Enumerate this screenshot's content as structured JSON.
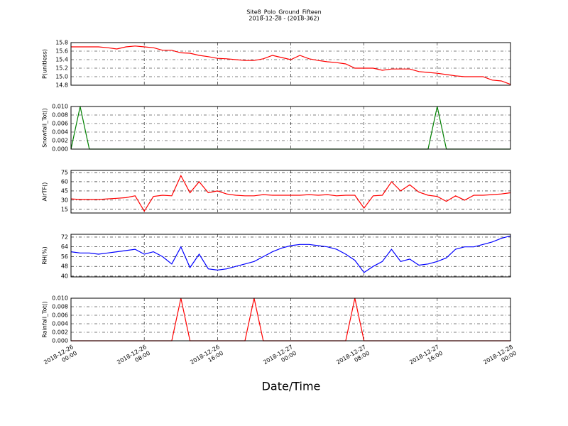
{
  "chart_data": {
    "type": "line",
    "title": "Site8_Polo_Ground_Fifteen",
    "subtitle": "2018-12-28 - (2018-362)",
    "xlabel": "Date/Time",
    "grid": true,
    "xlim": [
      0,
      48
    ],
    "xticks": [
      {
        "value": 0,
        "label": "2018-12-26\n00:00"
      },
      {
        "value": 8,
        "label": "2018-12-26\n08:00"
      },
      {
        "value": 16,
        "label": "2018-12-26\n16:00"
      },
      {
        "value": 24,
        "label": "2018-12-27\n00:00"
      },
      {
        "value": 32,
        "label": "2018-12-27\n08:00"
      },
      {
        "value": 40,
        "label": "2018-12-27\n16:00"
      },
      {
        "value": 48,
        "label": "2018-12-28\n00:00"
      }
    ],
    "x": [
      0,
      1,
      2,
      3,
      4,
      5,
      6,
      7,
      8,
      9,
      10,
      11,
      12,
      13,
      14,
      15,
      16,
      17,
      18,
      19,
      20,
      21,
      22,
      23,
      24,
      25,
      26,
      27,
      28,
      29,
      30,
      31,
      32,
      33,
      34,
      35,
      36,
      37,
      38,
      39,
      40,
      41,
      42,
      43,
      44,
      45,
      46,
      47,
      48
    ],
    "panels": [
      {
        "ylabel": "P(unitless)",
        "ylim": [
          14.8,
          15.8
        ],
        "yticks": [
          14.8,
          {
            "value": 15,
            "label": "15.0"
          },
          15.2,
          15.4,
          15.6,
          15.8
        ],
        "series": [
          {
            "color": "#ff0000",
            "values": [
              15.7,
              15.7,
              15.7,
              15.7,
              15.68,
              15.65,
              15.7,
              15.72,
              15.7,
              15.68,
              15.62,
              15.62,
              15.56,
              15.55,
              15.5,
              15.47,
              15.43,
              15.42,
              15.4,
              15.38,
              15.38,
              15.42,
              15.5,
              15.45,
              15.4,
              15.5,
              15.42,
              15.38,
              15.35,
              15.33,
              15.3,
              15.2,
              15.2,
              15.2,
              15.15,
              15.18,
              15.18,
              15.18,
              15.12,
              15.1,
              15.08,
              15.05,
              15.02,
              15.0,
              15.0,
              15.0,
              14.92,
              14.9,
              14.82
            ]
          }
        ]
      },
      {
        "ylabel": "Snowfall_Tot()",
        "ylim": [
          0,
          0.01
        ],
        "yticks": [
          {
            "value": 0,
            "label": "0.000"
          },
          {
            "value": 0.002,
            "label": "0.002"
          },
          {
            "value": 0.004,
            "label": "0.004"
          },
          {
            "value": 0.006,
            "label": "0.006"
          },
          {
            "value": 0.008,
            "label": "0.008"
          },
          {
            "value": 0.01,
            "label": "0.010"
          }
        ],
        "series": [
          {
            "color": "#007f00",
            "values": [
              0,
              0.01,
              0,
              0,
              0,
              0,
              0,
              0,
              0,
              0,
              0,
              0,
              0,
              0,
              0,
              0,
              0,
              0,
              0,
              0,
              0,
              0,
              0,
              0,
              0,
              0,
              0,
              0,
              0,
              0,
              0,
              0,
              0,
              0,
              0,
              0,
              0,
              0,
              0,
              0,
              0.01,
              0,
              0,
              0,
              0,
              0,
              0,
              0,
              0
            ]
          }
        ]
      },
      {
        "ylabel": "AirTF()",
        "ylim": [
          9,
          78.5
        ],
        "yticks": [
          15,
          30,
          45,
          60,
          75
        ],
        "series": [
          {
            "color": "#ff0000",
            "values": [
              32,
              31,
              31,
              31,
              32,
              33,
              34,
              37,
              12,
              36,
              38,
              37,
              70,
              42,
              60,
              42,
              45,
              40,
              38,
              37,
              37,
              39,
              38,
              38,
              38,
              38,
              39,
              38,
              39,
              37,
              38,
              38,
              17,
              37,
              38,
              60,
              45,
              55,
              43,
              38,
              36,
              28,
              37,
              30,
              38,
              38,
              39,
              40,
              42
            ]
          }
        ]
      },
      {
        "ylabel": "RH(%)",
        "ylim": [
          39.4,
          74.3
        ],
        "yticks": [
          40,
          48,
          56,
          64,
          72
        ],
        "series": [
          {
            "color": "#0000ff",
            "values": [
              60,
              59,
              59,
              58,
              59,
              60,
              61,
              62,
              58,
              60,
              56,
              50,
              64,
              47,
              58,
              46,
              45,
              46,
              48,
              50,
              52,
              56,
              60,
              63,
              65,
              66,
              66,
              65,
              64,
              62,
              58,
              53,
              43,
              48,
              52,
              62,
              52,
              54,
              49,
              50,
              52,
              55,
              62,
              64,
              64,
              66,
              68,
              71,
              73
            ]
          }
        ]
      },
      {
        "ylabel": "Rainfall_Tot()",
        "ylim": [
          0,
          0.01
        ],
        "yticks": [
          {
            "value": 0,
            "label": "0.000"
          },
          {
            "value": 0.002,
            "label": "0.002"
          },
          {
            "value": 0.004,
            "label": "0.004"
          },
          {
            "value": 0.006,
            "label": "0.006"
          },
          {
            "value": 0.008,
            "label": "0.008"
          },
          {
            "value": 0.01,
            "label": "0.010"
          }
        ],
        "series": [
          {
            "color": "#ff0000",
            "values": [
              0,
              0,
              0,
              0,
              0,
              0,
              0,
              0,
              0,
              0,
              0,
              0,
              0.01,
              0,
              0,
              0,
              0,
              0,
              0,
              0,
              0.01,
              0,
              0,
              0,
              0,
              0,
              0,
              0,
              0,
              0,
              0,
              0.01,
              0,
              0,
              0,
              0,
              0,
              0,
              0,
              0,
              0,
              0,
              0,
              0,
              0,
              0,
              0,
              0,
              0
            ]
          }
        ]
      }
    ]
  }
}
